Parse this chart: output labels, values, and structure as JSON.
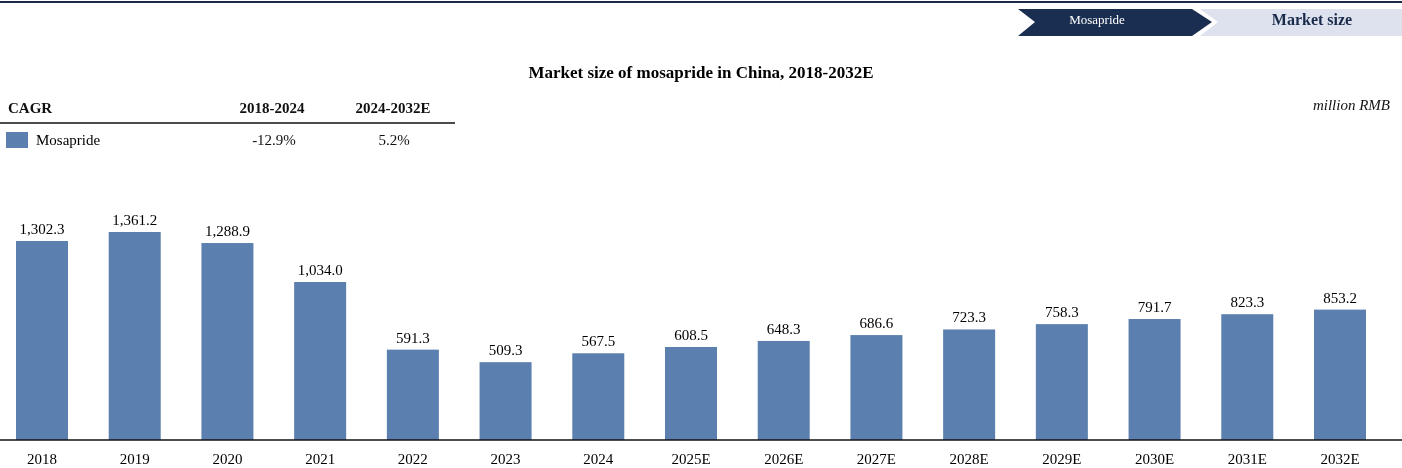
{
  "chart_data": {
    "type": "bar",
    "title": "Market size of mosapride in China, 2018-2032E",
    "categories": [
      "2018",
      "2019",
      "2020",
      "2021",
      "2022",
      "2023",
      "2024",
      "2025E",
      "2026E",
      "2027E",
      "2028E",
      "2029E",
      "2030E",
      "2031E",
      "2032E"
    ],
    "series": [
      {
        "name": "Mosapride",
        "color": "#5b7fae",
        "values": [
          1302.3,
          1361.2,
          1288.9,
          1034.0,
          591.3,
          509.3,
          567.5,
          608.5,
          648.3,
          686.6,
          723.3,
          758.3,
          791.7,
          823.3,
          853.2
        ],
        "value_labels": [
          "1,302.3",
          "1,361.2",
          "1,288.9",
          "1,034.0",
          "591.3",
          "509.3",
          "567.5",
          "608.5",
          "648.3",
          "686.6",
          "723.3",
          "758.3",
          "791.7",
          "823.3",
          "853.2"
        ]
      }
    ],
    "legend": "top left",
    "annotations": [
      "Mosapride",
      "Market size",
      "CAGR",
      "2018-2024",
      "2024-2032E",
      "-12.9%",
      "5.2%",
      "million RMB"
    ]
  }
}
